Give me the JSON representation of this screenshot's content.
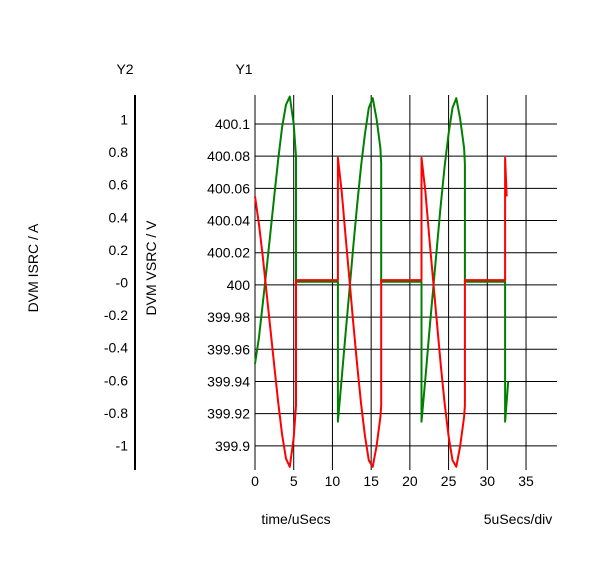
{
  "chart_data": {
    "type": "line",
    "y2_title": "Y2",
    "y1_title": "Y1",
    "y2_label": "DVM ISRC / A",
    "y1_label": "DVM VSRC / V",
    "xlabel": "time/uSecs",
    "x_scale_note": "5uSecs/div",
    "xlim": [
      0,
      39
    ],
    "y1lim": [
      399.885,
      400.118
    ],
    "y2lim": [
      -1.15,
      1.15
    ],
    "x_ticks": [
      0,
      5,
      10,
      15,
      20,
      25,
      30,
      35
    ],
    "y1_ticks": [
      {
        "value": 399.9,
        "label": "399.9"
      },
      {
        "value": 399.92,
        "label": "399.92"
      },
      {
        "value": 399.94,
        "label": "399.94"
      },
      {
        "value": 399.96,
        "label": "399.96"
      },
      {
        "value": 399.98,
        "label": "399.98"
      },
      {
        "value": 400.0,
        "label": "400"
      },
      {
        "value": 400.02,
        "label": "400.02"
      },
      {
        "value": 400.04,
        "label": "400.04"
      },
      {
        "value": 400.06,
        "label": "400.06"
      },
      {
        "value": 400.08,
        "label": "400.08"
      },
      {
        "value": 400.1,
        "label": "400.1"
      }
    ],
    "y2_ticks": [
      {
        "value": 1,
        "label": "1"
      },
      {
        "value": 0.8,
        "label": "0.8"
      },
      {
        "value": 0.6,
        "label": "0.6"
      },
      {
        "value": 0.4,
        "label": "0.4"
      },
      {
        "value": 0.2,
        "label": "0.2"
      },
      {
        "value": 0,
        "label": "-0"
      },
      {
        "value": -0.2,
        "label": "-0.2"
      },
      {
        "value": -0.4,
        "label": "-0.4"
      },
      {
        "value": -0.6,
        "label": "-0.6"
      },
      {
        "value": -0.8,
        "label": "-0.8"
      },
      {
        "value": -1,
        "label": "-1"
      }
    ],
    "grid": true,
    "series": [
      {
        "axis": "y1",
        "color": "#008000",
        "x": [
          0,
          0.5,
          1,
          1.5,
          2,
          2.5,
          3,
          3.5,
          4,
          4.5,
          5,
          5.3,
          5.3,
          10.7,
          10.7,
          11.2,
          11.7,
          12.2,
          12.7,
          13.2,
          13.7,
          14.2,
          14.7,
          15.2,
          15.7,
          16.2,
          16.3,
          16.3,
          21.5,
          21.5,
          22,
          22.5,
          23,
          23.5,
          24,
          24.5,
          25,
          25.5,
          26,
          26.5,
          27,
          27.1,
          27.1,
          32.3,
          32.3,
          32.7
        ],
        "values": [
          399.951,
          399.967,
          399.988,
          400.01,
          400.033,
          400.056,
          400.078,
          400.098,
          400.112,
          400.117,
          400.1,
          400.08,
          400.002,
          400.002,
          399.915,
          399.942,
          399.97,
          399.997,
          400.024,
          400.05,
          400.074,
          400.094,
          400.11,
          400.116,
          400.103,
          400.085,
          400.075,
          400.002,
          400.002,
          399.915,
          399.942,
          399.97,
          399.997,
          400.024,
          400.05,
          400.074,
          400.094,
          400.11,
          400.116,
          400.103,
          400.085,
          400.075,
          400.002,
          400.002,
          399.915,
          399.94
        ]
      },
      {
        "axis": "y1",
        "color": "#ff0000",
        "x": [
          0,
          0.5,
          1,
          1.5,
          2,
          2.5,
          3,
          3.5,
          4,
          4.5,
          5,
          5.3,
          5.3,
          10.7,
          10.7,
          11.2,
          11.7,
          12.2,
          12.7,
          13.2,
          13.7,
          14.2,
          14.7,
          15.2,
          15.7,
          16.2,
          16.3,
          16.3,
          21.5,
          21.5,
          22,
          22.5,
          23,
          23.5,
          24,
          24.5,
          25,
          25.5,
          26,
          26.5,
          27,
          27.1,
          27.1,
          32.3,
          32.3,
          32.5
        ],
        "values": [
          400.055,
          400.038,
          400.018,
          399.995,
          399.972,
          399.949,
          399.927,
          399.907,
          399.892,
          399.887,
          399.905,
          399.925,
          400.003,
          400.003,
          400.079,
          400.058,
          400.03,
          400.003,
          399.976,
          399.95,
          399.926,
          399.906,
          399.891,
          399.887,
          399.9,
          399.918,
          399.925,
          400.003,
          400.003,
          400.079,
          400.058,
          400.03,
          400.003,
          399.976,
          399.95,
          399.926,
          399.906,
          399.891,
          399.887,
          399.9,
          399.918,
          399.925,
          400.003,
          400.003,
          400.079,
          400.055
        ]
      }
    ]
  }
}
